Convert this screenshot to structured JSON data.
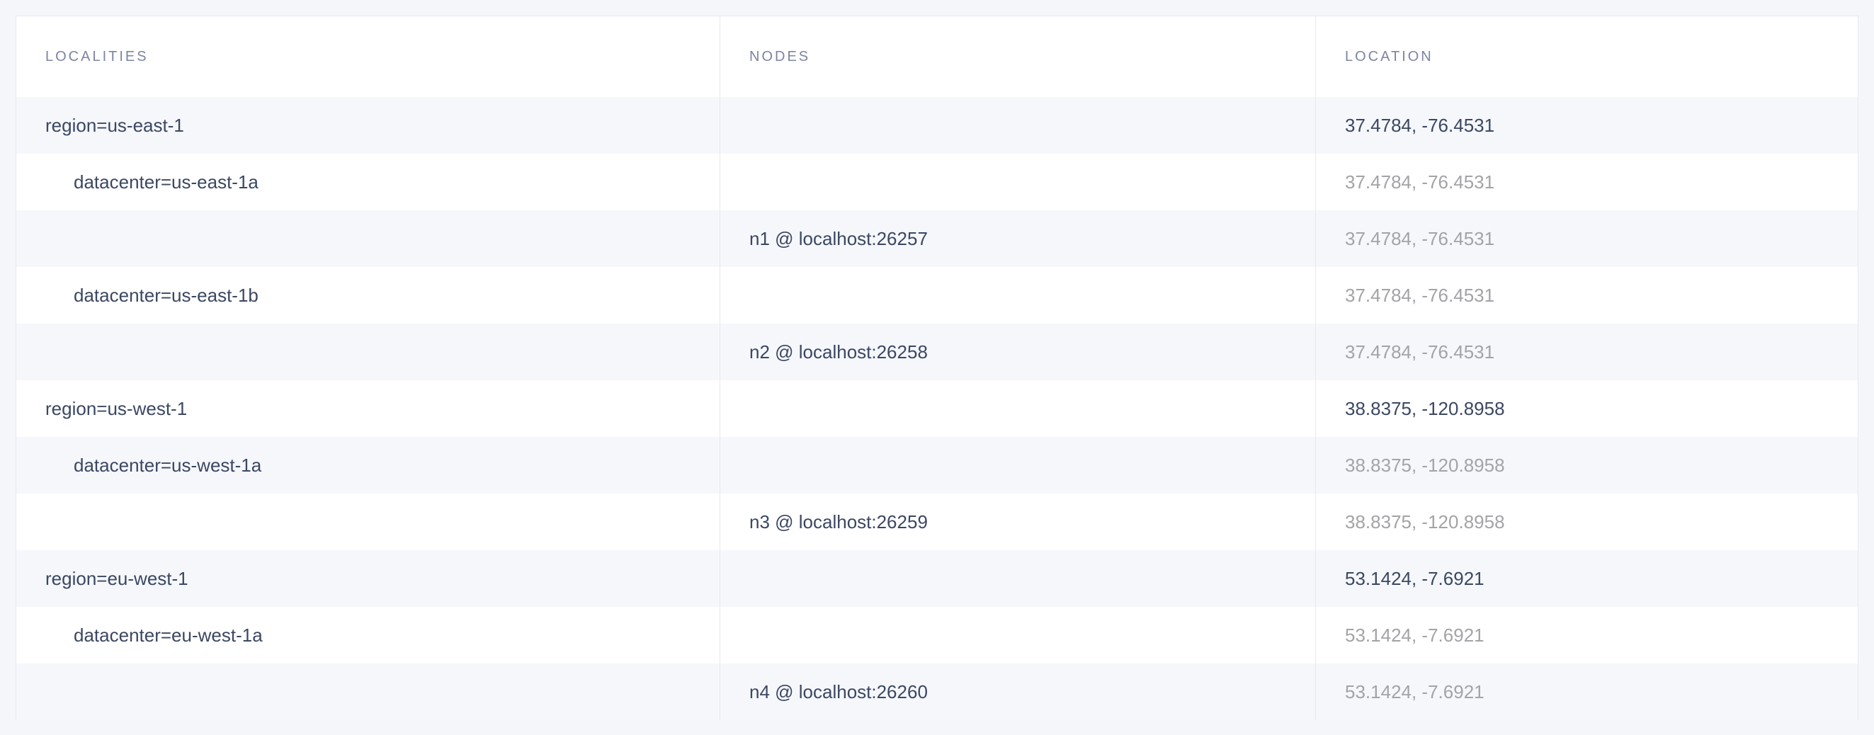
{
  "table": {
    "headers": [
      "LOCALITIES",
      "NODES",
      "LOCATION"
    ],
    "rows": [
      {
        "locality": "region=us-east-1",
        "level": "region",
        "node": "",
        "location": "37.4784, -76.4531"
      },
      {
        "locality": "datacenter=us-east-1a",
        "level": "datacenter",
        "node": "",
        "location": "37.4784, -76.4531"
      },
      {
        "locality": "",
        "level": "node",
        "node": "n1 @ localhost:26257",
        "location": "37.4784, -76.4531"
      },
      {
        "locality": "datacenter=us-east-1b",
        "level": "datacenter",
        "node": "",
        "location": "37.4784, -76.4531"
      },
      {
        "locality": "",
        "level": "node",
        "node": "n2 @ localhost:26258",
        "location": "37.4784, -76.4531"
      },
      {
        "locality": "region=us-west-1",
        "level": "region",
        "node": "",
        "location": "38.8375, -120.8958"
      },
      {
        "locality": "datacenter=us-west-1a",
        "level": "datacenter",
        "node": "",
        "location": "38.8375, -120.8958"
      },
      {
        "locality": "",
        "level": "node",
        "node": "n3 @ localhost:26259",
        "location": "38.8375, -120.8958"
      },
      {
        "locality": "region=eu-west-1",
        "level": "region",
        "node": "",
        "location": "53.1424, -7.6921"
      },
      {
        "locality": "datacenter=eu-west-1a",
        "level": "datacenter",
        "node": "",
        "location": "53.1424, -7.6921"
      },
      {
        "locality": "",
        "level": "node",
        "node": "n4 @ localhost:26260",
        "location": "53.1424, -7.6921"
      }
    ]
  },
  "colors": {
    "text": "#3b4762",
    "muted": "#a3a3a8",
    "header": "#7c84a3",
    "alt_row": "#f5f7fb"
  }
}
